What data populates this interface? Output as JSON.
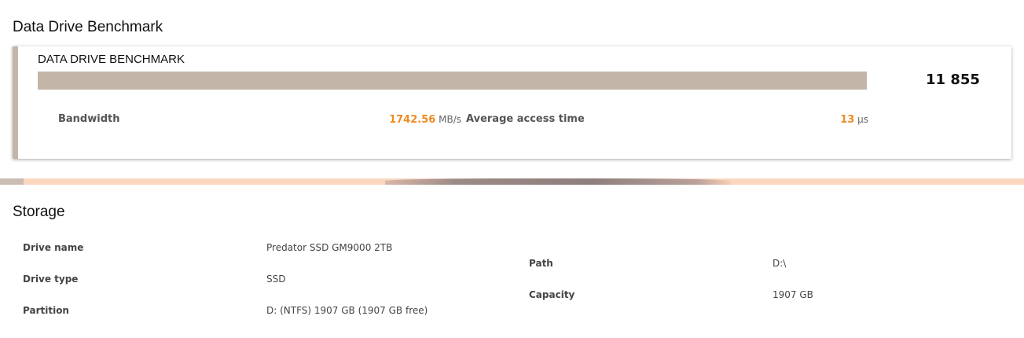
{
  "benchmark_section": {
    "heading": "Data Drive Benchmark"
  },
  "benchmark_card": {
    "title": "DATA DRIVE BENCHMARK",
    "score": "11 855",
    "score_bar_fill_percent": 100,
    "bandwidth": {
      "label": "Bandwidth",
      "value": "1742.56",
      "unit": "MB/s"
    },
    "access_time": {
      "label": "Average access time",
      "value": "13",
      "unit": "µs"
    },
    "accent_color": "#f08a24",
    "bar_color": "#c3b6a8"
  },
  "storage": {
    "heading": "Storage",
    "left": [
      {
        "label": "Drive name",
        "value": "Predator SSD GM9000 2TB"
      },
      {
        "label": "Drive type",
        "value": "SSD"
      },
      {
        "label": "Partition",
        "value": "D: (NTFS) 1907 GB (1907 GB free)"
      }
    ],
    "right": [
      {
        "label": "Path",
        "value": "D:\\"
      },
      {
        "label": "Capacity",
        "value": "1907 GB"
      }
    ]
  }
}
